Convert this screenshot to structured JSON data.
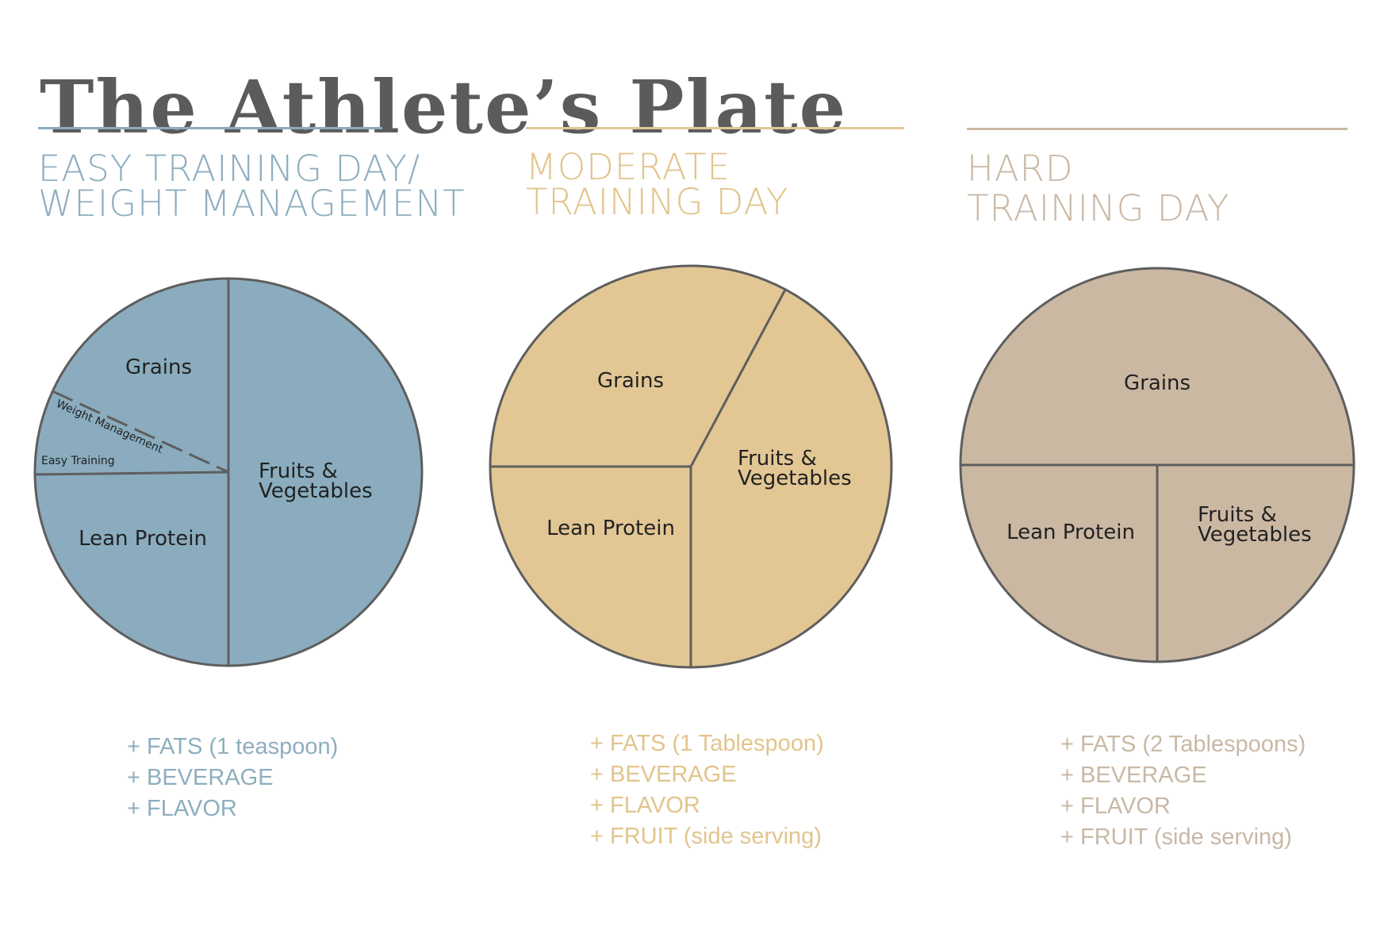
{
  "title": "The Athlete’s Plate",
  "columns": [
    {
      "heading_lines": [
        "EASY TRAINING DAY/",
        "WEIGHT MANAGEMENT"
      ],
      "accent": "#8aacbe",
      "heading_color": "#8eaebf",
      "plate": {
        "segments": [
          {
            "label": "Grains"
          },
          {
            "label": "Lean Protein"
          },
          {
            "label_lines": [
              "Fruits &",
              "Vegetables"
            ]
          }
        ],
        "annotations": [
          "Weight Management",
          "Easy Training"
        ]
      },
      "extras": [
        "+ FATS (1 teaspoon)",
        "+ BEVERAGE",
        "+ FLAVOR"
      ]
    },
    {
      "heading_lines": [
        "MODERATE",
        "TRAINING DAY"
      ],
      "accent": "#e2c794",
      "heading_color": "#e2c48c",
      "plate": {
        "segments": [
          {
            "label": "Grains"
          },
          {
            "label": "Lean Protein"
          },
          {
            "label_lines": [
              "Fruits &",
              "Vegetables"
            ]
          }
        ]
      },
      "extras": [
        "+ FATS (1 Tablespoon)",
        "+ BEVERAGE",
        "+ FLAVOR",
        "+ FRUIT (side serving)"
      ]
    },
    {
      "heading_lines": [
        "HARD",
        "TRAINING DAY"
      ],
      "accent": "#cbb8a3",
      "heading_color": "#c9b8a5",
      "plate": {
        "segments": [
          {
            "label": "Grains"
          },
          {
            "label": "Lean Protein"
          },
          {
            "label_lines": [
              "Fruits &",
              "Vegetables"
            ]
          }
        ]
      },
      "extras": [
        "+ FATS (2 Tablespoons)",
        "+ BEVERAGE",
        "+ FLAVOR",
        "+ FRUIT (side serving)"
      ]
    }
  ],
  "outline_color": "#5e5e5e"
}
